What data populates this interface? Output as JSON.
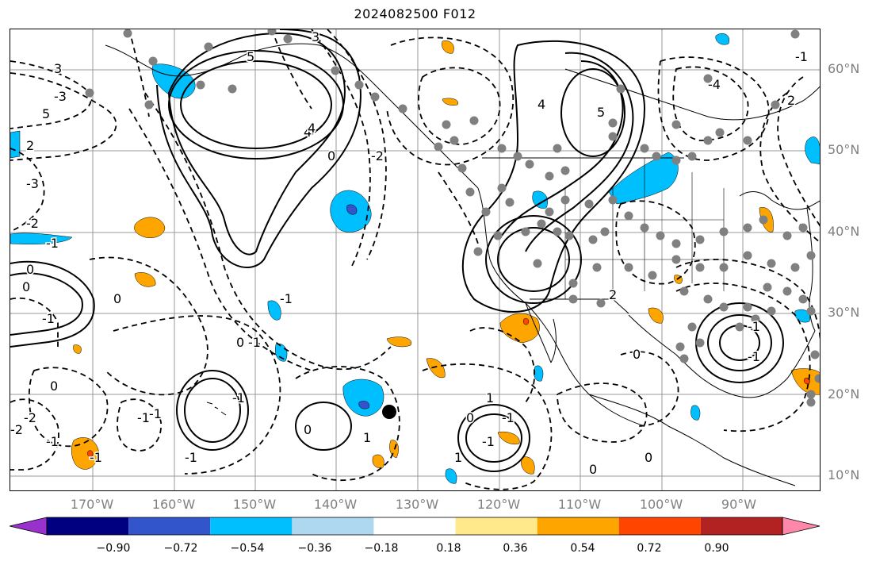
{
  "title": "2024082500 F012",
  "lat_labels": [
    "60°N",
    "50°N",
    "40°N",
    "30°N",
    "20°N",
    "10°N"
  ],
  "lon_labels": [
    "170°W",
    "160°W",
    "150°W",
    "140°W",
    "130°W",
    "120°W",
    "110°W",
    "100°W",
    "90°W"
  ],
  "colorbar": {
    "colors": [
      "#9932cc",
      "#000080",
      "#3355cc",
      "#00bfff",
      "#add8f0",
      "#ffffff",
      "#ffe98a",
      "#ffa500",
      "#ff4500",
      "#b22222",
      "#ff88aa"
    ],
    "tick_labels": [
      "−0.90",
      "−0.72",
      "−0.54",
      "−0.36",
      "−0.18",
      "0.18",
      "0.36",
      "0.54",
      "0.72",
      "0.90"
    ]
  },
  "contour_labels": [
    "3",
    "5",
    "3",
    "-3",
    "5",
    "5",
    "4",
    "-4",
    "2",
    "-3",
    "4",
    "4",
    "-1",
    "0",
    "0",
    "-2",
    "2",
    "-1",
    "-1",
    "0",
    "0",
    "-1",
    "1",
    "-1",
    "-2",
    "-1",
    "0",
    "-1",
    "0",
    "0",
    "2",
    "-1",
    "1",
    "0",
    "-1",
    "0",
    "-1",
    "1",
    "-1",
    "-1",
    "-1",
    "0",
    "-2",
    "-1",
    "0",
    "-2",
    "-1"
  ],
  "station_marker": "center"
}
